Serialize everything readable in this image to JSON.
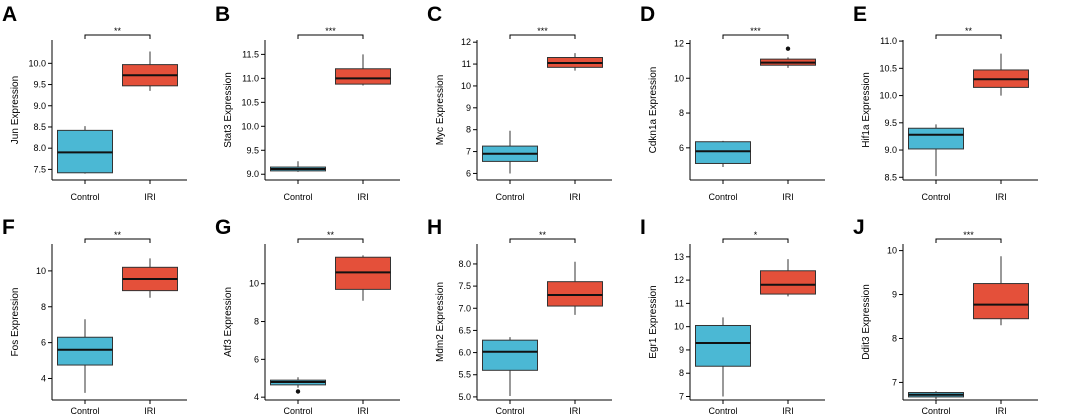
{
  "colors": {
    "control": "#4bb8d4",
    "iri": "#e4503a",
    "axis": "#000000"
  },
  "chart_data": [
    {
      "panel": "A",
      "type": "box",
      "ylabel": "Jun Expression",
      "categories": [
        "Control",
        "IRI"
      ],
      "ylim": [
        7.25,
        10.55
      ],
      "yticks": [
        7.5,
        8.0,
        8.5,
        9.0,
        9.5,
        10.0
      ],
      "tick_labels": [
        "7.5",
        "8.0",
        "8.5",
        "9.0",
        "9.5",
        "10.0"
      ],
      "boxes": [
        {
          "min": 7.4,
          "q1": 7.42,
          "median": 7.9,
          "q3": 8.42,
          "max": 8.52,
          "outliers": []
        },
        {
          "min": 9.35,
          "q1": 9.47,
          "median": 9.72,
          "q3": 9.97,
          "max": 10.28,
          "outliers": []
        }
      ],
      "significance": "**"
    },
    {
      "panel": "B",
      "type": "box",
      "ylabel": "Stat3 Expression",
      "categories": [
        "Control",
        "IRI"
      ],
      "ylim": [
        8.88,
        11.8
      ],
      "yticks": [
        9.0,
        9.5,
        10.0,
        10.5,
        11.0,
        11.5
      ],
      "tick_labels": [
        "9.0",
        "9.5",
        "10.0",
        "10.5",
        "11.0",
        "11.5"
      ],
      "boxes": [
        {
          "min": 9.05,
          "q1": 9.07,
          "median": 9.11,
          "q3": 9.15,
          "max": 9.27,
          "outliers": []
        },
        {
          "min": 10.85,
          "q1": 10.88,
          "median": 11.0,
          "q3": 11.2,
          "max": 11.5,
          "outliers": []
        }
      ],
      "significance": "***"
    },
    {
      "panel": "C",
      "type": "box",
      "ylabel": "Myc Expression",
      "categories": [
        "Control",
        "IRI"
      ],
      "ylim": [
        5.7,
        12.1
      ],
      "yticks": [
        6,
        7,
        8,
        9,
        10,
        11,
        12
      ],
      "tick_labels": [
        "6",
        "7",
        "8",
        "9",
        "10",
        "11",
        "12"
      ],
      "boxes": [
        {
          "min": 6.0,
          "q1": 6.55,
          "median": 6.9,
          "q3": 7.25,
          "max": 7.95,
          "outliers": []
        },
        {
          "min": 10.7,
          "q1": 10.85,
          "median": 11.05,
          "q3": 11.3,
          "max": 11.5,
          "outliers": []
        }
      ],
      "significance": "***"
    },
    {
      "panel": "D",
      "type": "box",
      "ylabel": "Cdkn1a Expression",
      "categories": [
        "Control",
        "IRI"
      ],
      "ylim": [
        4.15,
        12.2
      ],
      "yticks": [
        6,
        8,
        10,
        12
      ],
      "tick_labels": [
        "6",
        "8",
        "10",
        "12"
      ],
      "boxes": [
        {
          "min": 4.9,
          "q1": 5.1,
          "median": 5.8,
          "q3": 6.35,
          "max": 6.4,
          "outliers": []
        },
        {
          "min": 10.6,
          "q1": 10.75,
          "median": 10.9,
          "q3": 11.1,
          "max": 11.2,
          "outliers": [
            11.7
          ]
        }
      ],
      "significance": "***"
    },
    {
      "panel": "E",
      "type": "box",
      "ylabel": "Hif1a Expression",
      "categories": [
        "Control",
        "IRI"
      ],
      "ylim": [
        8.45,
        11.02
      ],
      "yticks": [
        8.5,
        9.0,
        9.5,
        10.0,
        10.5,
        11.0
      ],
      "tick_labels": [
        "8.5",
        "9.0",
        "9.5",
        "10.0",
        "10.5",
        "11.0"
      ],
      "boxes": [
        {
          "min": 8.52,
          "q1": 9.02,
          "median": 9.28,
          "q3": 9.4,
          "max": 9.47,
          "outliers": []
        },
        {
          "min": 10.0,
          "q1": 10.15,
          "median": 10.3,
          "q3": 10.47,
          "max": 10.77,
          "outliers": []
        }
      ],
      "significance": "**"
    },
    {
      "panel": "F",
      "type": "box",
      "ylabel": "Fos Expression",
      "categories": [
        "Control",
        "IRI"
      ],
      "ylim": [
        2.8,
        11.5
      ],
      "yticks": [
        4,
        6,
        8,
        10
      ],
      "tick_labels": [
        "4",
        "6",
        "8",
        "10"
      ],
      "boxes": [
        {
          "min": 3.2,
          "q1": 4.75,
          "median": 5.6,
          "q3": 6.3,
          "max": 7.3,
          "outliers": []
        },
        {
          "min": 8.5,
          "q1": 8.9,
          "median": 9.55,
          "q3": 10.2,
          "max": 10.7,
          "outliers": []
        }
      ],
      "significance": "**"
    },
    {
      "panel": "G",
      "type": "box",
      "ylabel": "Atf3 Expression",
      "categories": [
        "Control",
        "IRI"
      ],
      "ylim": [
        3.85,
        12.1
      ],
      "yticks": [
        4,
        6,
        8,
        10
      ],
      "tick_labels": [
        "4",
        "6",
        "8",
        "10"
      ],
      "boxes": [
        {
          "min": 4.5,
          "q1": 4.65,
          "median": 4.8,
          "q3": 4.9,
          "max": 5.05,
          "outliers": [
            4.3
          ]
        },
        {
          "min": 9.1,
          "q1": 9.7,
          "median": 10.6,
          "q3": 11.4,
          "max": 11.5,
          "outliers": []
        }
      ],
      "significance": "**"
    },
    {
      "panel": "H",
      "type": "box",
      "ylabel": "Mdm2 Expression",
      "categories": [
        "Control",
        "IRI"
      ],
      "ylim": [
        4.93,
        8.45
      ],
      "yticks": [
        5.0,
        5.5,
        6.0,
        6.5,
        7.0,
        7.5,
        8.0
      ],
      "tick_labels": [
        "5.0",
        "5.5",
        "6.0",
        "6.5",
        "7.0",
        "7.5",
        "8.0"
      ],
      "boxes": [
        {
          "min": 5.02,
          "q1": 5.6,
          "median": 6.02,
          "q3": 6.28,
          "max": 6.35,
          "outliers": []
        },
        {
          "min": 6.85,
          "q1": 7.05,
          "median": 7.3,
          "q3": 7.6,
          "max": 8.05,
          "outliers": []
        }
      ],
      "significance": "**"
    },
    {
      "panel": "I",
      "type": "box",
      "ylabel": "Egr1 Expression",
      "categories": [
        "Control",
        "IRI"
      ],
      "ylim": [
        6.85,
        13.55
      ],
      "yticks": [
        7,
        8,
        9,
        10,
        11,
        12,
        13
      ],
      "tick_labels": [
        "7",
        "8",
        "9",
        "10",
        "11",
        "12",
        "13"
      ],
      "boxes": [
        {
          "min": 7.0,
          "q1": 8.3,
          "median": 9.3,
          "q3": 10.05,
          "max": 10.4,
          "outliers": []
        },
        {
          "min": 11.3,
          "q1": 11.4,
          "median": 11.8,
          "q3": 12.4,
          "max": 12.9,
          "outliers": []
        }
      ],
      "significance": "*"
    },
    {
      "panel": "J",
      "type": "box",
      "ylabel": "Ddit3 Expression",
      "categories": [
        "Control",
        "IRI"
      ],
      "ylim": [
        6.6,
        10.15
      ],
      "yticks": [
        7,
        8,
        9,
        10
      ],
      "tick_labels": [
        "7",
        "8",
        "9",
        "10"
      ],
      "boxes": [
        {
          "min": 6.62,
          "q1": 6.67,
          "median": 6.72,
          "q3": 6.77,
          "max": 6.8,
          "outliers": []
        },
        {
          "min": 8.3,
          "q1": 8.45,
          "median": 8.77,
          "q3": 9.25,
          "max": 9.87,
          "outliers": []
        }
      ],
      "significance": "***"
    }
  ]
}
